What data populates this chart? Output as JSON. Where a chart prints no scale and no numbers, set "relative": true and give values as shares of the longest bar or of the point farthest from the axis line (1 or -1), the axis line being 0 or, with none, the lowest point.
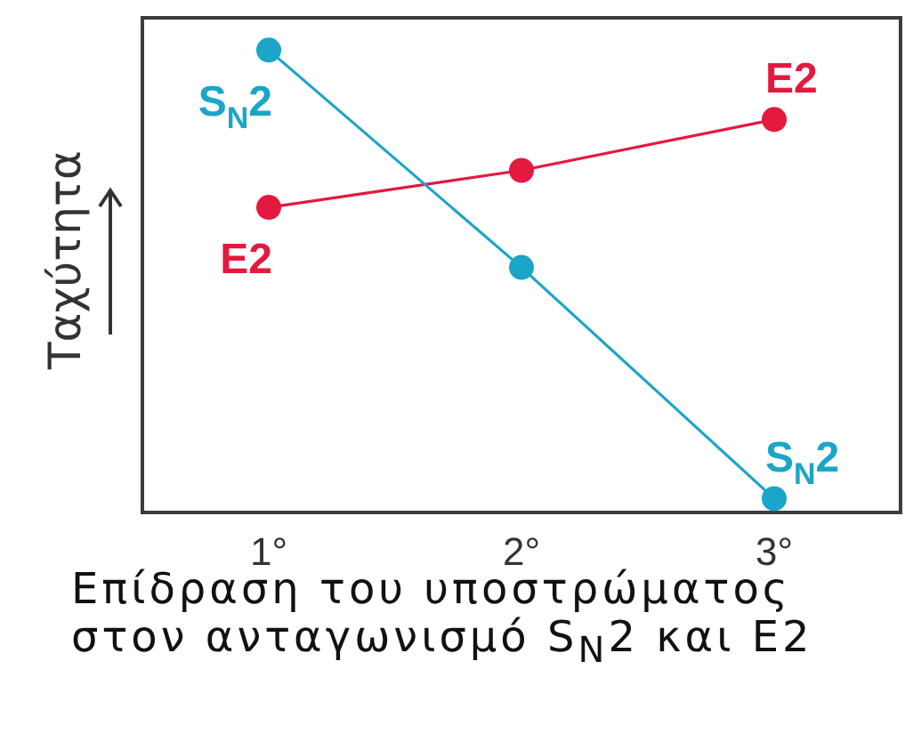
{
  "chart_data": {
    "type": "line",
    "categories": [
      "1°",
      "2°",
      "3°"
    ],
    "relative": true,
    "ylabel": "Ταχύτητα",
    "marker": "circle",
    "line_style": "solid",
    "series": [
      {
        "name": "S$_{N}$2",
        "color": "#1ba5c8",
        "values": [
          1,
          0.53,
          0.03
        ]
      },
      {
        "name": "E2",
        "color": "#e3193f",
        "values": [
          0.66,
          0.74,
          0.85
        ]
      }
    ],
    "annotations": [
      "Επίδραση του υποστρώματος στον ανταγωνισμό S$_{N}$2 και E2"
    ]
  }
}
